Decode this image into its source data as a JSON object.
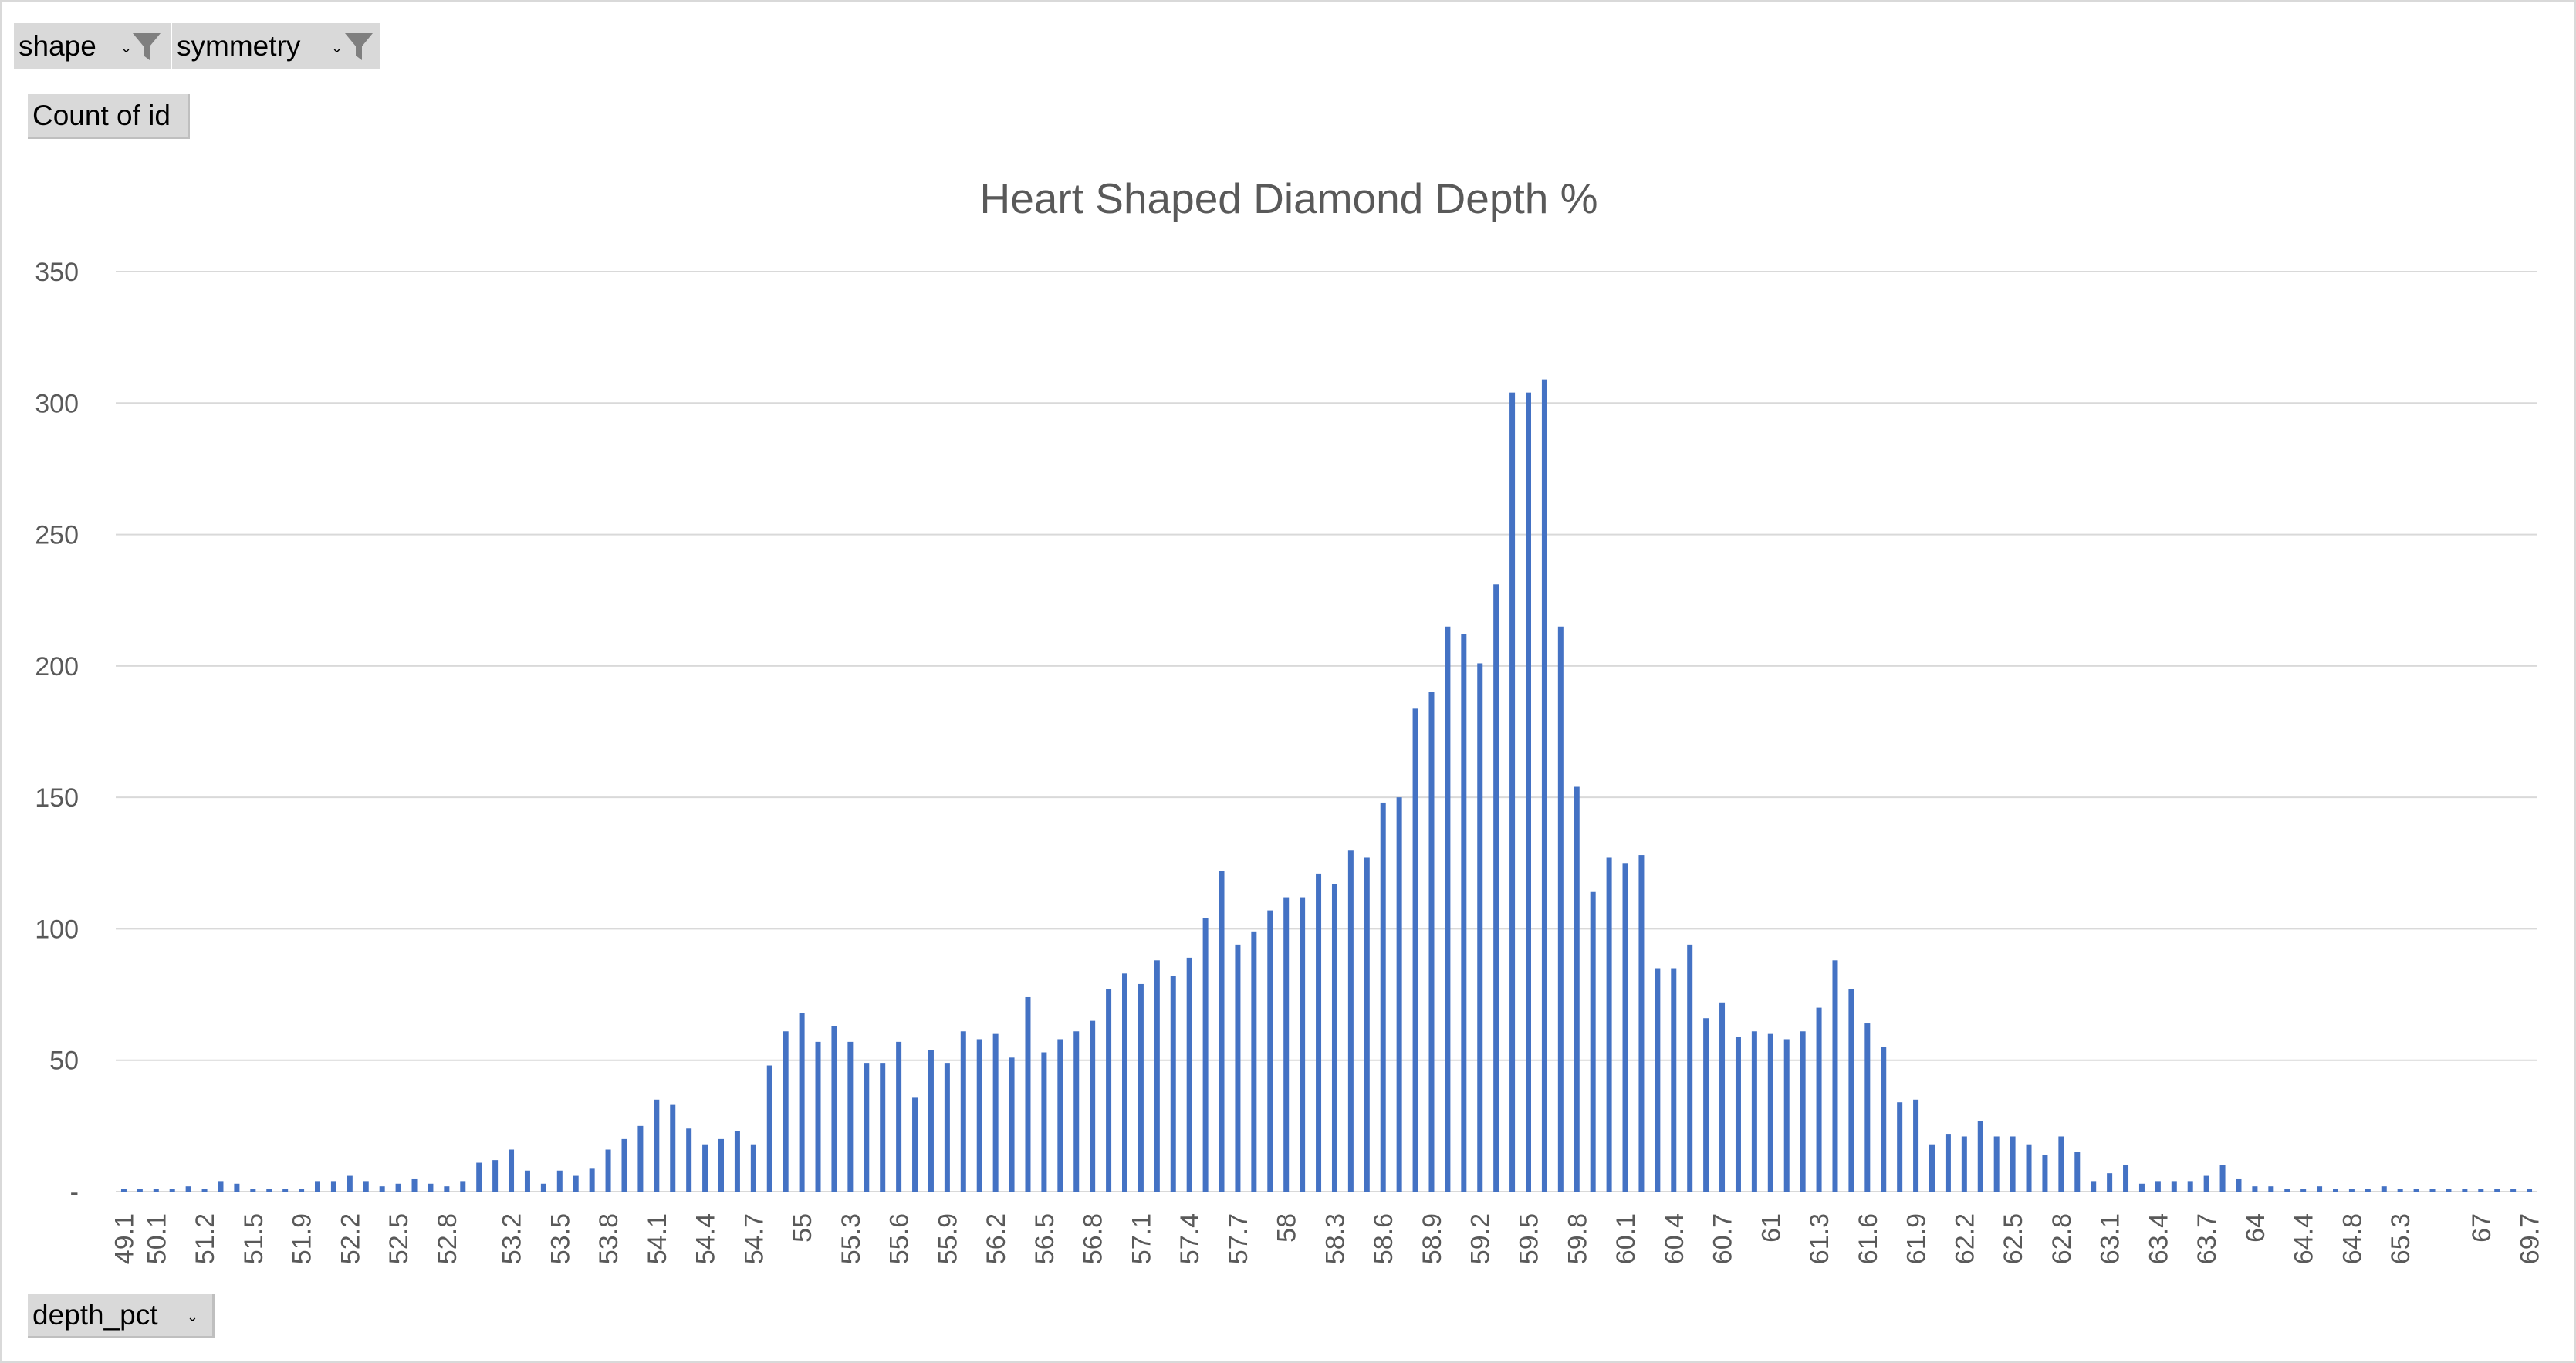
{
  "filters": {
    "shape_label": "shape",
    "symmetry_label": "symmetry",
    "dropdown_glyph": "⌄",
    "filter_icon": "funnel-icon"
  },
  "value_field_label": "Count of id",
  "axis_field_label": "depth_pct",
  "chart_data": {
    "type": "bar",
    "title": "Heart Shaped Diamond Depth %",
    "xlabel": "",
    "ylabel": "",
    "ylim": [
      0,
      350
    ],
    "y_ticks": [
      "-",
      "50",
      "100",
      "150",
      "200",
      "250",
      "300",
      "350"
    ],
    "grid": true,
    "legend": "none",
    "bar_color": "#4472c4",
    "categories": [
      "49.1",
      "49.8",
      "50.1",
      "50.8",
      "51",
      "51.2",
      "51.3",
      "51.4",
      "51.5",
      "51.6",
      "51.7",
      "51.9",
      "52",
      "52.1",
      "52.2",
      "52.3",
      "52.4",
      "52.5",
      "52.6",
      "52.7",
      "52.8",
      "52.9",
      "53",
      "53.1",
      "53.2",
      "53.3",
      "53.4",
      "53.5",
      "53.6",
      "53.7",
      "53.8",
      "53.9",
      "54",
      "54.1",
      "54.2",
      "54.3",
      "54.4",
      "54.5",
      "54.6",
      "54.7",
      "54.8",
      "54.9",
      "55",
      "55.1",
      "55.2",
      "55.3",
      "55.4",
      "55.5",
      "55.6",
      "55.7",
      "55.8",
      "55.9",
      "56",
      "56.1",
      "56.2",
      "56.3",
      "56.4",
      "56.5",
      "56.6",
      "56.7",
      "56.8",
      "56.9",
      "57",
      "57.1",
      "57.2",
      "57.3",
      "57.4",
      "57.5",
      "57.6",
      "57.7",
      "57.8",
      "57.9",
      "58",
      "58.1",
      "58.2",
      "58.3",
      "58.4",
      "58.5",
      "58.6",
      "58.7",
      "58.8",
      "58.9",
      "59",
      "59.1",
      "59.2",
      "59.3",
      "59.4",
      "59.5",
      "59.6",
      "59.7",
      "59.8",
      "59.9",
      "60",
      "60.1",
      "60.2",
      "60.3",
      "60.4",
      "60.5",
      "60.6",
      "60.7",
      "60.8",
      "60.9",
      "61",
      "61.1",
      "61.2",
      "61.3",
      "61.4",
      "61.5",
      "61.6",
      "61.7",
      "61.8",
      "61.9",
      "62",
      "62.1",
      "62.2",
      "62.3",
      "62.4",
      "62.5",
      "62.6",
      "62.7",
      "62.8",
      "62.9",
      "63",
      "63.1",
      "63.2",
      "63.3",
      "63.4",
      "63.5",
      "63.6",
      "63.7",
      "63.8",
      "63.9",
      "64",
      "64.1",
      "64.2",
      "64.4",
      "64.5",
      "64.6",
      "64.8",
      "64.9",
      "65",
      "65.3",
      "65.4",
      "65.6",
      "66",
      "66.4",
      "67",
      "67.3",
      "68",
      "69.7"
    ],
    "values": [
      1,
      1,
      1,
      1,
      2,
      1,
      4,
      3,
      1,
      1,
      1,
      1,
      4,
      4,
      6,
      4,
      2,
      3,
      5,
      3,
      2,
      4,
      11,
      12,
      16,
      8,
      3,
      8,
      6,
      9,
      16,
      20,
      25,
      35,
      33,
      24,
      18,
      20,
      23,
      18,
      48,
      61,
      68,
      57,
      63,
      57,
      49,
      49,
      57,
      36,
      54,
      49,
      61,
      58,
      60,
      51,
      74,
      53,
      58,
      61,
      65,
      77,
      83,
      79,
      88,
      82,
      89,
      104,
      122,
      94,
      99,
      107,
      112,
      112,
      121,
      117,
      130,
      127,
      148,
      150,
      184,
      190,
      215,
      212,
      201,
      231,
      304,
      304,
      309,
      215,
      154,
      114,
      127,
      125,
      128,
      85,
      85,
      94,
      66,
      72,
      59,
      61,
      60,
      58,
      61,
      70,
      88,
      77,
      64,
      55,
      34,
      35,
      18,
      22,
      21,
      27,
      21,
      21,
      18,
      14,
      21,
      15,
      4,
      7,
      10,
      3,
      4,
      4,
      4,
      6,
      10,
      5,
      2,
      2,
      1,
      1,
      2,
      1,
      1,
      1,
      2,
      1,
      1,
      1,
      1,
      1,
      1,
      1,
      1,
      1
    ],
    "x_tick_labels": [
      "49.1",
      "50.1",
      "51.2",
      "51.5",
      "51.9",
      "52.2",
      "52.5",
      "52.8",
      "53.2",
      "53.5",
      "53.8",
      "54.1",
      "54.4",
      "54.7",
      "55",
      "55.3",
      "55.6",
      "55.9",
      "56.2",
      "56.5",
      "56.8",
      "57.1",
      "57.4",
      "57.7",
      "58",
      "58.3",
      "58.6",
      "58.9",
      "59.2",
      "59.5",
      "59.8",
      "60.1",
      "60.4",
      "60.7",
      "61",
      "61.3",
      "61.6",
      "61.9",
      "62.2",
      "62.5",
      "62.8",
      "63.1",
      "63.4",
      "63.7",
      "64",
      "64.4",
      "64.8",
      "65.3",
      "67",
      "69.7"
    ]
  }
}
